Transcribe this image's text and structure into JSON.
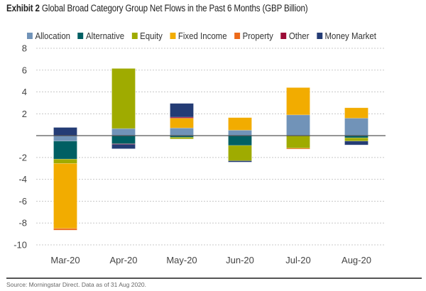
{
  "chart_data": {
    "type": "bar",
    "stacked": true,
    "title_bold": "Exhibit 2",
    "title": "Global Broad Category Group Net Flows in the Past 6 Months (GBP Billion)",
    "xlabel": "",
    "ylabel": "",
    "ylim": [
      -10,
      8
    ],
    "yticks": [
      8,
      6,
      4,
      2,
      -2,
      -4,
      -6,
      -8,
      -10
    ],
    "grid": true,
    "legend_position": "top",
    "categories": [
      "Mar-20",
      "Apr-20",
      "May-20",
      "Jun-20",
      "Jul-20",
      "Aug-20"
    ],
    "series": [
      {
        "name": "Allocation",
        "color": "#7193b8",
        "values": [
          -0.5,
          0.65,
          0.7,
          0.5,
          1.9,
          1.6
        ]
      },
      {
        "name": "Alternative",
        "color": "#005f63",
        "values": [
          -1.65,
          -0.75,
          -0.15,
          -0.9,
          0,
          -0.2
        ]
      },
      {
        "name": "Equity",
        "color": "#9fab00",
        "values": [
          -0.4,
          5.5,
          -0.15,
          -1.4,
          -1.15,
          -0.3
        ]
      },
      {
        "name": "Fixed Income",
        "color": "#f2ac00",
        "values": [
          -5.95,
          0,
          0.9,
          1.15,
          2.5,
          0.95
        ]
      },
      {
        "name": "Property",
        "color": "#ec6a1a",
        "values": [
          -0.15,
          0,
          0,
          0,
          -0.05,
          0
        ]
      },
      {
        "name": "Other",
        "color": "#9b0a36",
        "values": [
          0,
          -0.05,
          0.1,
          0,
          0,
          0
        ]
      },
      {
        "name": "Money Market",
        "color": "#243c75",
        "values": [
          0.75,
          -0.4,
          1.25,
          -0.12,
          0,
          -0.35
        ]
      }
    ]
  },
  "source": "Source: Morningstar Direct. Data as of 31 Aug 2020."
}
